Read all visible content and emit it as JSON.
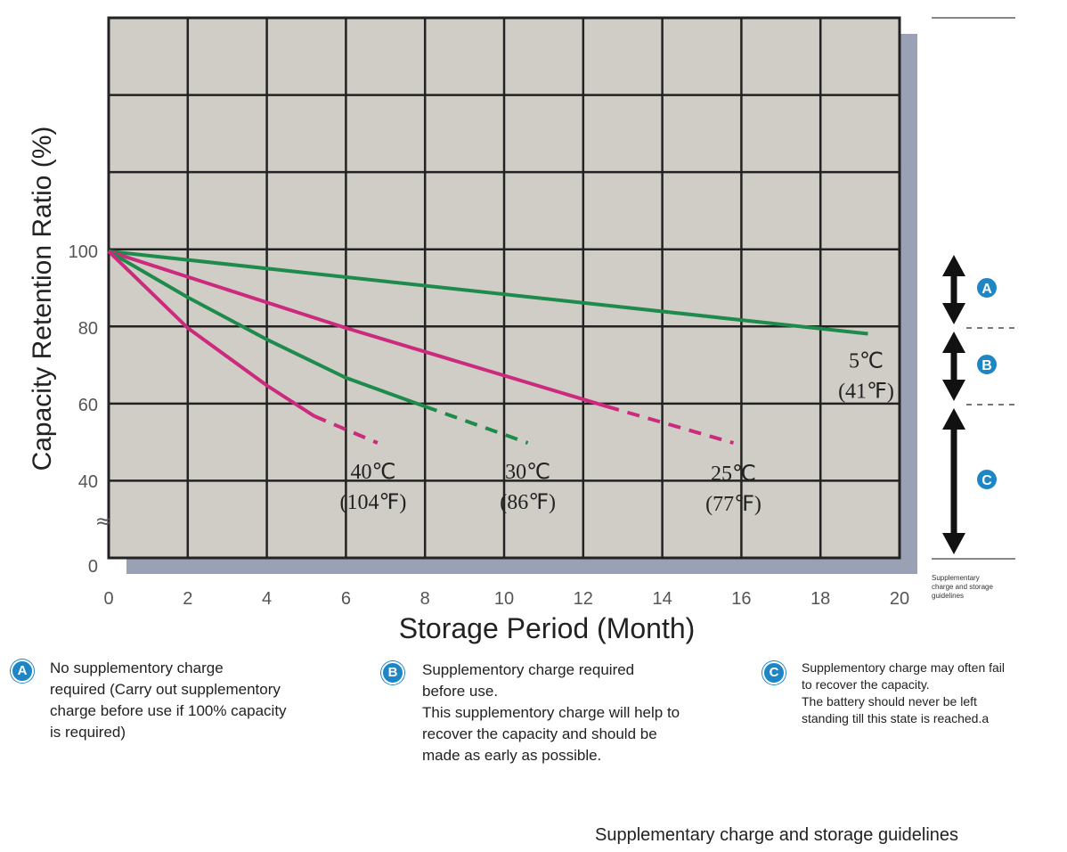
{
  "chart_data": {
    "type": "line",
    "title": "",
    "xlabel": "Storage Period (Month)",
    "ylabel": "Capacity Retention Ratio (%)",
    "xlim": [
      0,
      20
    ],
    "ylim": [
      0,
      100
    ],
    "x_ticks": [
      "0",
      "2",
      "4",
      "6",
      "8",
      "10",
      "12",
      "14",
      "16",
      "18",
      "20"
    ],
    "y_ticks": [
      {
        "value": 0,
        "label": "0"
      },
      {
        "value": 40,
        "label": "40"
      },
      {
        "value": 60,
        "label": "60"
      },
      {
        "value": 80,
        "label": "80"
      },
      {
        "value": 100,
        "label": "100"
      }
    ],
    "axis_break_symbol": "≈",
    "grid": true,
    "series": [
      {
        "name": "5℃ (41℉)",
        "label_lines": [
          "5℃",
          "(41℉)"
        ],
        "color": "#1e8a4c",
        "solid": [
          [
            0,
            100
          ],
          [
            19.2,
            78.5
          ]
        ],
        "dashed": []
      },
      {
        "name": "25℃ (77℉)",
        "label_lines": [
          "25℃",
          "(77℉)"
        ],
        "color": "#cc2a7c",
        "solid": [
          [
            0,
            100
          ],
          [
            6,
            80
          ],
          [
            12.6,
            59.5
          ]
        ],
        "dashed": [
          [
            12.6,
            59.5
          ],
          [
            15.8,
            50
          ]
        ]
      },
      {
        "name": "30℃ (86℉)",
        "label_lines": [
          "30℃",
          "(86℉)"
        ],
        "color": "#1e8a4c",
        "solid": [
          [
            0,
            100
          ],
          [
            2,
            88
          ],
          [
            4,
            77
          ],
          [
            6,
            67
          ],
          [
            8,
            59.5
          ]
        ],
        "dashed": [
          [
            8,
            59.5
          ],
          [
            10.6,
            50
          ]
        ]
      },
      {
        "name": "40℃ (104℉)",
        "label_lines": [
          "40℃",
          "(104℉)"
        ],
        "color": "#cc2a7c",
        "solid": [
          [
            0,
            100
          ],
          [
            2,
            80
          ],
          [
            4,
            65
          ],
          [
            5.2,
            57
          ]
        ],
        "dashed": [
          [
            5.2,
            57
          ],
          [
            6.8,
            50
          ]
        ]
      }
    ],
    "zones": [
      {
        "letter": "A",
        "from": 100,
        "to": 80
      },
      {
        "letter": "B",
        "from": 80,
        "to": 60
      },
      {
        "letter": "C",
        "from": 60,
        "to": 0
      }
    ]
  },
  "side_caption": "Supplementary\ncharge and storage\nguidelines",
  "notes": [
    {
      "letter": "A",
      "text": "No supplementory charge\nrequired (Carry out supplementory\ncharge before use if 100% capacity\nis required)"
    },
    {
      "letter": "B",
      "text": "Supplementory charge required\nbefore use.\nThis supplementory charge will help to\nrecover  the capacity and should be\nmade as early as possible."
    },
    {
      "letter": "C",
      "text": "Supplementory charge may often fail\nto recover the capacity.\nThe battery should never be left\nstanding till this state is reached.a"
    }
  ],
  "caption": "Supplementary charge and storage guidelines",
  "colors": {
    "plot_bg": "#cfcdc6",
    "shadow": "#9aa1b5",
    "green": "#1e8a4c",
    "magenta": "#cc2a7c",
    "badge": "#1f86c6"
  }
}
